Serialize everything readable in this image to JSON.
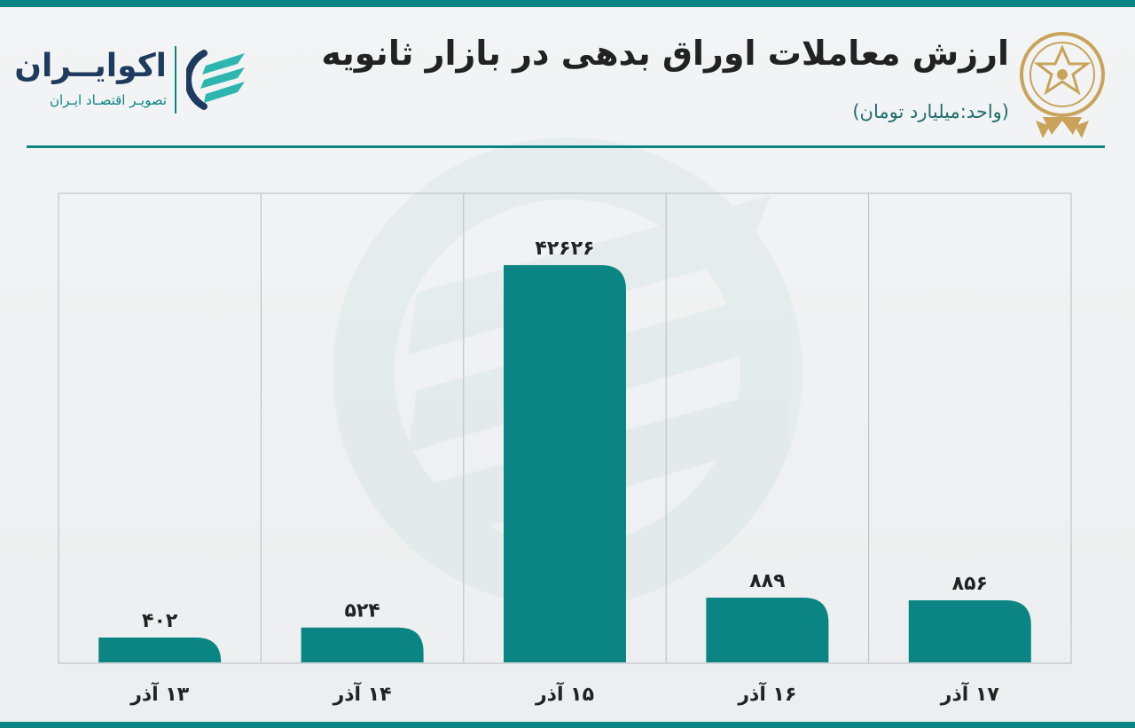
{
  "header": {
    "title": "ارزش معاملات اوراق بدهی در بازار ثانویه",
    "subtitle": "(واحد:میلیارد تومان)"
  },
  "brand": {
    "name": "اکوایــران",
    "tagline": "تصویـر اقتصـاد ایـران"
  },
  "colors": {
    "accent": "#0b8583",
    "navy": "#1f3a5f",
    "gold": "#c9a35a"
  },
  "chart_data": {
    "type": "bar",
    "categories": [
      "۱۳ آذر",
      "۱۴ آذر",
      "۱۵ آذر",
      "۱۶ آذر",
      "۱۷ آذر"
    ],
    "values": [
      402,
      524,
      42626,
      889,
      856
    ],
    "value_labels": [
      "۴۰۲",
      "۵۲۴",
      "۴۲۶۲۶",
      "۸۸۹",
      "۸۵۶"
    ],
    "title": "ارزش معاملات اوراق بدهی در بازار ثانویه",
    "unit": "(واحد:میلیارد تومان)",
    "grid": "vertical separators",
    "note": "axis not linear; bars drawn at approximate rendered heights"
  }
}
